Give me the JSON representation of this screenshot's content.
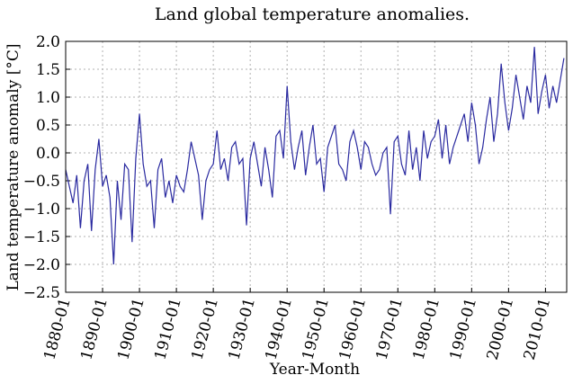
{
  "chart_data": {
    "type": "line",
    "title": "Land global temperature anomalies.",
    "x_label": "Year-Month",
    "y_label": "Land temperature anomaly [°C]",
    "grid": true,
    "xlim": [
      "1880-01",
      "2015-10"
    ],
    "ylim": [
      -2.5,
      2.0
    ],
    "xticks": [
      "1880-01",
      "1890-01",
      "1900-01",
      "1910-01",
      "1920-01",
      "1930-01",
      "1940-01",
      "1950-01",
      "1960-01",
      "1970-01",
      "1980-01",
      "1990-01",
      "2000-01",
      "2010-01"
    ],
    "yticks": [
      {
        "value": 2.0,
        "label": "2.0"
      },
      {
        "value": 1.5,
        "label": "1.5"
      },
      {
        "value": 1.0,
        "label": "1.0"
      },
      {
        "value": 0.5,
        "label": "0.5"
      },
      {
        "value": 0.0,
        "label": "0.0"
      },
      {
        "value": -0.5,
        "label": "−0.5"
      },
      {
        "value": -1.0,
        "label": "−1.0"
      },
      {
        "value": -1.5,
        "label": "−1.5"
      },
      {
        "value": -2.0,
        "label": "−2.0"
      },
      {
        "value": -2.5,
        "label": "−2.5"
      }
    ],
    "x": [
      "1880-01",
      "1881-01",
      "1882-01",
      "1883-01",
      "1884-01",
      "1885-01",
      "1886-01",
      "1887-01",
      "1888-01",
      "1889-01",
      "1890-01",
      "1891-01",
      "1892-01",
      "1893-01",
      "1894-01",
      "1895-01",
      "1896-01",
      "1897-01",
      "1898-01",
      "1899-01",
      "1900-01",
      "1901-01",
      "1902-01",
      "1903-01",
      "1904-01",
      "1905-01",
      "1906-01",
      "1907-01",
      "1908-01",
      "1909-01",
      "1910-01",
      "1911-01",
      "1912-01",
      "1913-01",
      "1914-01",
      "1915-01",
      "1916-01",
      "1917-01",
      "1918-01",
      "1919-01",
      "1920-01",
      "1921-01",
      "1922-01",
      "1923-01",
      "1924-01",
      "1925-01",
      "1926-01",
      "1927-01",
      "1928-01",
      "1929-01",
      "1930-01",
      "1931-01",
      "1932-01",
      "1933-01",
      "1934-01",
      "1935-01",
      "1936-01",
      "1937-01",
      "1938-01",
      "1939-01",
      "1940-01",
      "1941-01",
      "1942-01",
      "1943-01",
      "1944-01",
      "1945-01",
      "1946-01",
      "1947-01",
      "1948-01",
      "1949-01",
      "1950-01",
      "1951-01",
      "1952-01",
      "1953-01",
      "1954-01",
      "1955-01",
      "1956-01",
      "1957-01",
      "1958-01",
      "1959-01",
      "1960-01",
      "1961-01",
      "1962-01",
      "1963-01",
      "1964-01",
      "1965-01",
      "1966-01",
      "1967-01",
      "1968-01",
      "1969-01",
      "1970-01",
      "1971-01",
      "1972-01",
      "1973-01",
      "1974-01",
      "1975-01",
      "1976-01",
      "1977-01",
      "1978-01",
      "1979-01",
      "1980-01",
      "1981-01",
      "1982-01",
      "1983-01",
      "1984-01",
      "1985-01",
      "1986-01",
      "1987-01",
      "1988-01",
      "1989-01",
      "1990-01",
      "1991-01",
      "1992-01",
      "1993-01",
      "1994-01",
      "1995-01",
      "1996-01",
      "1997-01",
      "1998-01",
      "1999-01",
      "2000-01",
      "2001-01",
      "2002-01",
      "2003-01",
      "2004-01",
      "2005-01",
      "2006-01",
      "2007-01",
      "2008-01",
      "2009-01",
      "2010-01",
      "2011-01",
      "2012-01",
      "2013-01",
      "2014-01",
      "2015-01"
    ],
    "series": [
      {
        "color": "#2a2aa0",
        "values": [
          -0.3,
          -0.6,
          -0.9,
          -0.4,
          -1.35,
          -0.5,
          -0.2,
          -1.4,
          -0.3,
          0.25,
          -0.6,
          -0.4,
          -0.8,
          -2.0,
          -0.5,
          -1.2,
          -0.2,
          -0.3,
          -1.6,
          -0.1,
          0.7,
          -0.2,
          -0.6,
          -0.5,
          -1.35,
          -0.3,
          -0.1,
          -0.8,
          -0.5,
          -0.9,
          -0.4,
          -0.6,
          -0.7,
          -0.3,
          0.2,
          -0.1,
          -0.4,
          -1.2,
          -0.5,
          -0.3,
          -0.2,
          0.4,
          -0.3,
          -0.1,
          -0.5,
          0.1,
          0.2,
          -0.2,
          -0.1,
          -1.3,
          -0.1,
          0.2,
          -0.2,
          -0.6,
          0.1,
          -0.3,
          -0.8,
          0.3,
          0.4,
          -0.1,
          1.2,
          0.2,
          -0.3,
          0.1,
          0.4,
          -0.4,
          0.1,
          0.5,
          -0.2,
          -0.1,
          -0.7,
          0.1,
          0.3,
          0.5,
          -0.2,
          -0.3,
          -0.5,
          0.2,
          0.4,
          0.1,
          -0.3,
          0.2,
          0.1,
          -0.2,
          -0.4,
          -0.3,
          0.0,
          0.1,
          -1.1,
          0.2,
          0.3,
          -0.2,
          -0.4,
          0.4,
          -0.3,
          0.1,
          -0.5,
          0.4,
          -0.1,
          0.2,
          0.3,
          0.6,
          -0.1,
          0.5,
          -0.2,
          0.1,
          0.3,
          0.5,
          0.7,
          0.2,
          0.9,
          0.5,
          -0.2,
          0.1,
          0.6,
          1.0,
          0.2,
          0.7,
          1.6,
          0.9,
          0.4,
          0.8,
          1.4,
          1.0,
          0.6,
          1.2,
          0.9,
          1.9,
          0.7,
          1.1,
          1.4,
          0.8,
          1.2,
          0.9,
          1.3,
          1.7
        ]
      }
    ]
  }
}
